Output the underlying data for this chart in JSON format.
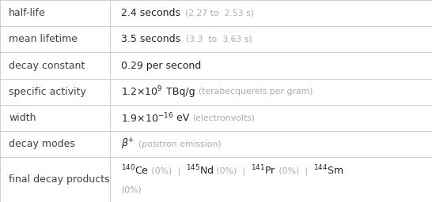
{
  "col_split": 0.255,
  "bg_color": "#ffffff",
  "border_color": "#c8c8c8",
  "label_color": "#404040",
  "gray_color": "#aaaaaa",
  "dark_color": "#222222",
  "figsize": [
    5.46,
    2.56
  ],
  "dpi": 100,
  "label_fs": 9.0,
  "value_fs": 9.0,
  "small_fs": 7.8,
  "row_fracs": [
    1,
    1,
    1,
    1,
    1,
    1,
    1.7
  ],
  "labels": [
    "half-life",
    "mean lifetime",
    "decay constant",
    "specific activity",
    "width",
    "decay modes",
    "final decay products"
  ]
}
